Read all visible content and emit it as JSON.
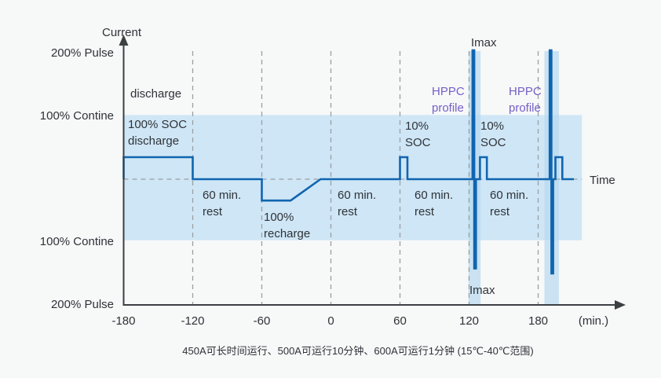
{
  "caption": "450A可长时间运行、500A可运行10分钟、600A可运行1分钟 (15℃-40℃范围)",
  "colors": {
    "background": "#f7f8f8",
    "band": "#cfe6f6",
    "band_overlay": "#b7d8ef",
    "line": "#1065af",
    "dashed": "#9aa0a4",
    "axis": "#3c4043",
    "text": "#2e3338",
    "purple": "#7560c8"
  },
  "chart_data": {
    "type": "line",
    "title": "HPPC battery test current profile over time",
    "y_axis_title": "Current",
    "x_axis_title": "Time",
    "x_unit_label": "(min.)",
    "x_ticks": [
      -180,
      -120,
      -60,
      0,
      60,
      120,
      180
    ],
    "xlim": [
      -180,
      250
    ],
    "y_levels": [
      {
        "label": "200% Pulse",
        "value": 2
      },
      {
        "label": "100% Contine",
        "value": 1
      },
      {
        "label": "100% Contine",
        "value": -1
      },
      {
        "label": "200% Pulse",
        "value": -2
      }
    ],
    "continuous_band": {
      "t_from": -180,
      "t_to": 218,
      "u_top": 1.02,
      "u_bottom": -0.97
    },
    "hppc_bands": [
      {
        "t_from": 119.5,
        "t_to": 130
      },
      {
        "t_from": 185.5,
        "t_to": 198
      }
    ],
    "profile": [
      [
        -180,
        0
      ],
      [
        -180,
        0.35
      ],
      [
        -120,
        0.35
      ],
      [
        -120,
        0
      ],
      [
        -60,
        0
      ],
      [
        -60,
        -0.34
      ],
      [
        -35,
        -0.34
      ],
      [
        -9,
        0
      ],
      [
        60,
        0
      ],
      [
        60,
        0.35
      ],
      [
        66.5,
        0.35
      ],
      [
        66.5,
        0
      ],
      [
        123,
        0
      ],
      [
        123,
        2.05
      ],
      [
        124.5,
        2.05
      ],
      [
        124.5,
        -1.42
      ],
      [
        126,
        -1.42
      ],
      [
        126,
        0
      ],
      [
        129.5,
        0
      ],
      [
        129.5,
        0.35
      ],
      [
        135.5,
        0.35
      ],
      [
        135.5,
        0
      ],
      [
        190,
        0
      ],
      [
        190,
        2.05
      ],
      [
        191.5,
        2.05
      ],
      [
        191.5,
        -1.5
      ],
      [
        193,
        -1.5
      ],
      [
        193,
        0
      ],
      [
        195,
        0
      ],
      [
        195,
        0.35
      ],
      [
        201,
        0.35
      ],
      [
        201,
        0
      ],
      [
        211,
        0
      ]
    ],
    "annotations": [
      {
        "name": "y-axis-title",
        "text": "Current",
        "x": 130,
        "y": 31
      },
      {
        "name": "x-axis-title",
        "text": "Time",
        "x": 751,
        "y": 219
      },
      {
        "name": "label-discharge",
        "text": "discharge",
        "x": 166,
        "y": 109
      },
      {
        "name": "label-100soc-discharge",
        "text": "100% SOC\ndischarge",
        "x": 163,
        "y": 148
      },
      {
        "name": "label-rest-1",
        "text": "60 min.\nrest",
        "x": 258,
        "y": 238
      },
      {
        "name": "label-100-recharge",
        "text": "100%\nrecharge",
        "x": 336,
        "y": 266
      },
      {
        "name": "label-rest-2",
        "text": "60 min.\nrest",
        "x": 430,
        "y": 238
      },
      {
        "name": "label-10soc-1",
        "text": "10%\nSOC",
        "x": 516,
        "y": 150
      },
      {
        "name": "label-rest-3",
        "text": "60 min.\nrest",
        "x": 528,
        "y": 238
      },
      {
        "name": "label-hppc-1",
        "text": "HPPC\nprofile",
        "x": 550,
        "y": 106,
        "color": "purple"
      },
      {
        "name": "label-imax-top",
        "text": "Imax",
        "x": 600,
        "y": 44
      },
      {
        "name": "label-10soc-2",
        "text": "10%\nSOC",
        "x": 612,
        "y": 150
      },
      {
        "name": "label-rest-4",
        "text": "60 min.\nrest",
        "x": 624,
        "y": 238
      },
      {
        "name": "label-hppc-2",
        "text": "HPPC\nprofile",
        "x": 648,
        "y": 106,
        "color": "purple"
      },
      {
        "name": "label-imax-bottom",
        "text": "Imax",
        "x": 598,
        "y": 359
      }
    ]
  }
}
